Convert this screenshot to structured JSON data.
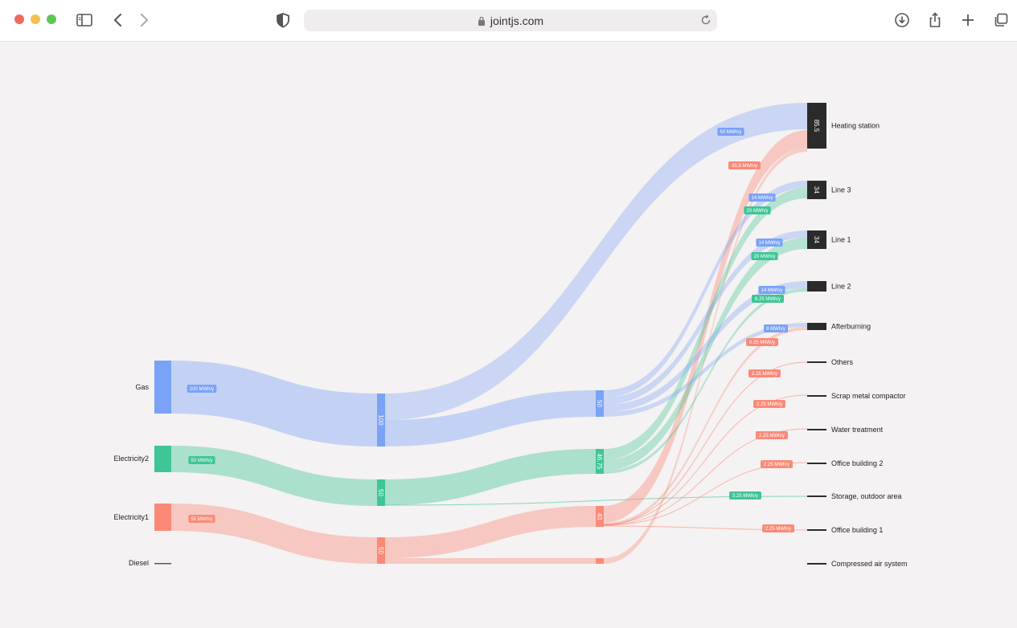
{
  "browser": {
    "url": "jointjs.com",
    "colors": {
      "close": "#ed6a5e",
      "minimize": "#f5bf4f",
      "zoom": "#61c554"
    }
  },
  "chart_data": {
    "type": "sankey",
    "unit": "MWh/y",
    "colors": {
      "gas": "#7aa2f7",
      "electricity2": "#3fc596",
      "electricity1": "#fa8a78",
      "diesel": "#555555",
      "sink": "#2b2b2b"
    },
    "sources": [
      {
        "name": "Gas",
        "badge": "100 MWh/y"
      },
      {
        "name": "Electricity2",
        "badge": "50 MWh/y"
      },
      {
        "name": "Electricity1",
        "badge": "50 MWh/y"
      },
      {
        "name": "Diesel",
        "badge": ""
      }
    ],
    "intermediate_nodes": [
      {
        "value_label": "100",
        "color": "gas"
      },
      {
        "value_label": "50",
        "color": "electricity2"
      },
      {
        "value_label": "50",
        "color": "electricity1"
      },
      {
        "value_label": "50",
        "color": "gas"
      },
      {
        "value_label": "46.75",
        "color": "electricity2"
      },
      {
        "value_label": "40",
        "color": "electricity1"
      }
    ],
    "targets": [
      {
        "name": "Heating station",
        "value_label": "85.5"
      },
      {
        "name": "Line 3",
        "value_label": "34"
      },
      {
        "name": "Line 1",
        "value_label": "34"
      },
      {
        "name": "Line 2",
        "value_label": ""
      },
      {
        "name": "Afterburning",
        "value_label": ""
      },
      {
        "name": "Others",
        "value_label": ""
      },
      {
        "name": "Scrap metal compactor",
        "value_label": ""
      },
      {
        "name": "Water treatment",
        "value_label": ""
      },
      {
        "name": "Office building 2",
        "value_label": ""
      },
      {
        "name": "Storage, outdoor area",
        "value_label": ""
      },
      {
        "name": "Office building 1",
        "value_label": ""
      },
      {
        "name": "Compressed air system",
        "value_label": ""
      }
    ],
    "flow_badges": [
      {
        "text": "50 MWh/y",
        "color": "gas"
      },
      {
        "text": "35.5 MWh/y",
        "color": "electricity1"
      },
      {
        "text": "14 MWh/y",
        "color": "gas"
      },
      {
        "text": "20 MWh/y",
        "color": "electricity2"
      },
      {
        "text": "14 MWh/y",
        "color": "gas"
      },
      {
        "text": "20 MWh/y",
        "color": "electricity2"
      },
      {
        "text": "14 MWh/y",
        "color": "gas"
      },
      {
        "text": "6.25 MWh/y",
        "color": "electricity2"
      },
      {
        "text": "8 MWh/y",
        "color": "gas"
      },
      {
        "text": "6.25 MWh/y",
        "color": "electricity1"
      },
      {
        "text": "2.25 MWh/y",
        "color": "electricity1"
      },
      {
        "text": "2.25 MWh/y",
        "color": "electricity1"
      },
      {
        "text": "2.25 MWh/y",
        "color": "electricity1"
      },
      {
        "text": "2.25 MWh/y",
        "color": "electricity1"
      },
      {
        "text": "3.25 MWh/y",
        "color": "electricity2"
      },
      {
        "text": "2.25 MWh/y",
        "color": "electricity1"
      }
    ]
  }
}
